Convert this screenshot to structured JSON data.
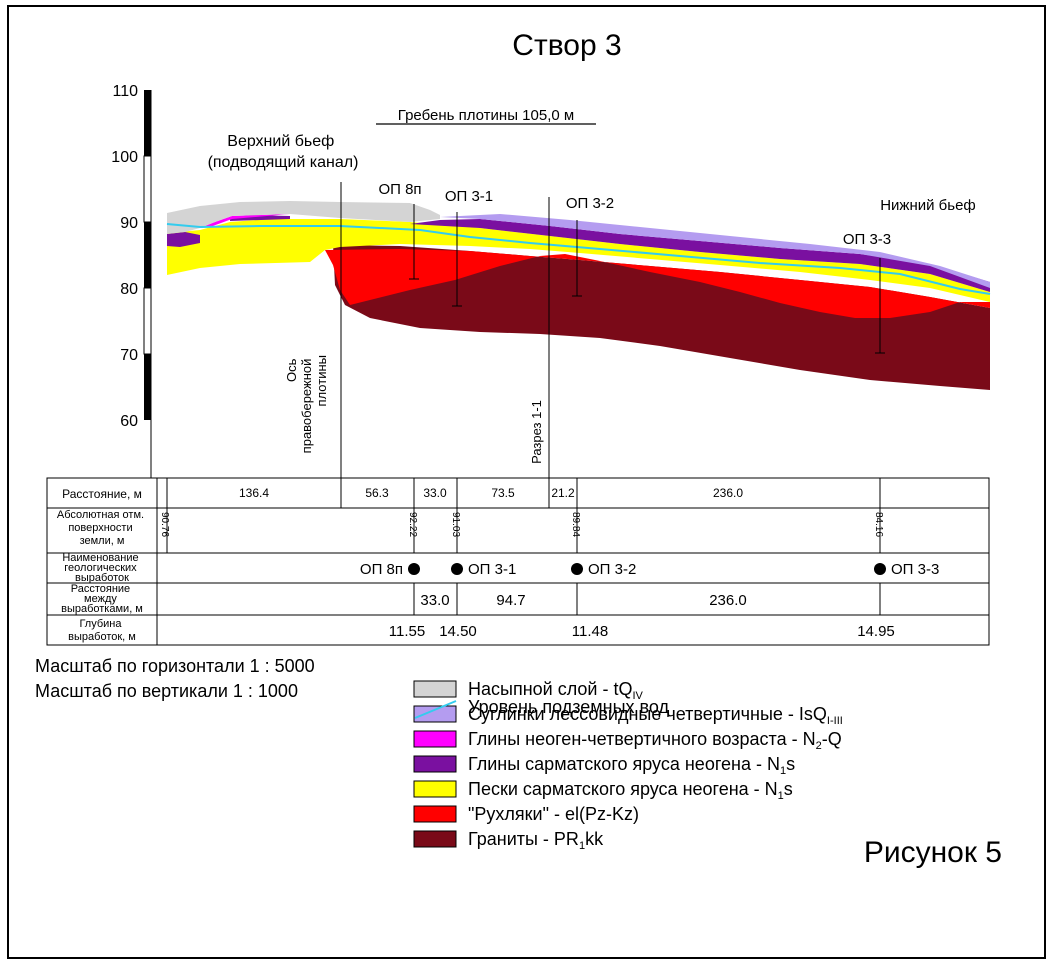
{
  "title": "Створ 3",
  "figure_label": "Рисунок 5",
  "y_axis": {
    "ticks": [
      110,
      100,
      90,
      80,
      70,
      60
    ],
    "range": [
      55,
      110
    ]
  },
  "annotations": {
    "crest": "Гребень плотины 105,0 м",
    "upstream": [
      "Верхний бьеф",
      "(подводящий канал)"
    ],
    "downstream": "Нижний бьеф",
    "dam_axis": [
      "Ось",
      "правобережной",
      "плотины"
    ],
    "section": "Разрез 1-1"
  },
  "boreholes": [
    {
      "label": "ОП 8п",
      "elevation": 92.22,
      "depth": 11.55,
      "gap": "33.0"
    },
    {
      "label": "ОП 3-1",
      "elevation": 91.03,
      "depth": 14.5,
      "gap": "94.7"
    },
    {
      "label": "ОП 3-2",
      "elevation": 89.84,
      "depth": 11.48,
      "gap": "236.0"
    },
    {
      "label": "ОП 3-3",
      "elevation": 84.16,
      "depth": 14.95,
      "gap": ""
    }
  ],
  "table": {
    "row_labels": [
      [
        "Расстояние, м"
      ],
      [
        "Абсолютная отм.",
        "поверхности",
        "земли, м"
      ],
      [
        "Наименование",
        "геологических",
        "выработок"
      ],
      [
        "Расстояние",
        "между",
        "выработками, м"
      ],
      [
        "Глубина",
        "выработок, м"
      ]
    ],
    "start_elevation": "90.76",
    "distances": [
      "136.4",
      "56.3",
      "33.0",
      "73.5",
      "21.2",
      "236.0"
    ],
    "gaps": [
      "33.0",
      "94.7",
      "236.0"
    ],
    "depths": [
      "11.55",
      "14.50",
      "11.48",
      "14.95"
    ]
  },
  "scale": {
    "horizontal": "Масштаб по горизонтали 1 : 5000",
    "vertical": "Масштаб по вертикали 1 : 1000"
  },
  "legend": [
    {
      "label": "Насыпной слой - tQ",
      "sub": "IV",
      "tail": "",
      "color": "#d4d4d4"
    },
    {
      "label": "Суглинки лессовидные четвертичные - IsQ",
      "sub": "I-III",
      "tail": "",
      "color": "#b49cf0"
    },
    {
      "label": "Глины неоген-четвертичного возраста - N",
      "sub": "2",
      "tail": "-Q",
      "color": "#ff00ff"
    },
    {
      "label": "Глины сарматского яруса неогена - N",
      "sub": "1",
      "tail": "s",
      "color": "#7a10a0"
    },
    {
      "label": "Пески сарматского яруса неогена - N",
      "sub": "1",
      "tail": "s",
      "color": "#ffff00"
    },
    {
      "label": "\"Рухляки\" - el(Pz-Kz)",
      "sub": "",
      "tail": "",
      "color": "#ff0000"
    },
    {
      "label": "Граниты - PR",
      "sub": "1",
      "tail": "kk",
      "color": "#7a0a18"
    }
  ],
  "groundwater": {
    "label": "Уровень подземных вод",
    "color": "#33ccee"
  }
}
